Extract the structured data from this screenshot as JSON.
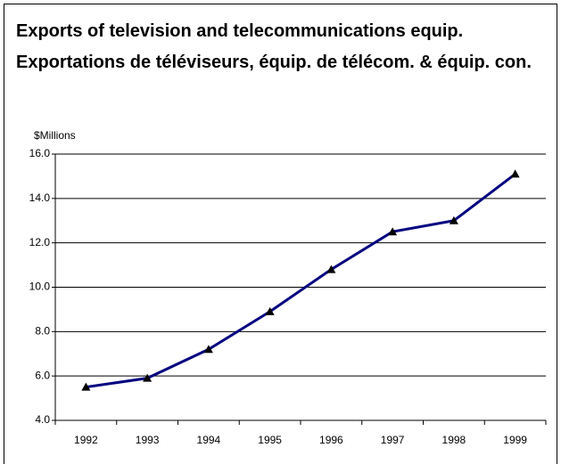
{
  "chart_data": {
    "type": "line",
    "title": "Exports of television and telecommunications equip.",
    "subtitle": "Exportations de téléviseurs, équip. de télécom. & équip. con.",
    "y_label": "$Millions",
    "categories": [
      "1992",
      "1993",
      "1994",
      "1995",
      "1996",
      "1997",
      "1998",
      "1999"
    ],
    "series": [
      {
        "name": "Exports",
        "color": "#000080",
        "values": [
          5.5,
          5.9,
          7.2,
          8.9,
          10.8,
          12.5,
          13.0,
          15.1
        ]
      }
    ],
    "ylim": [
      4,
      16
    ],
    "yticks": [
      {
        "value": 4,
        "label": "4.0"
      },
      {
        "value": 6,
        "label": "6.0"
      },
      {
        "value": 8,
        "label": "8.0"
      },
      {
        "value": 10,
        "label": "10.0"
      },
      {
        "value": 12,
        "label": "12.0"
      },
      {
        "value": 14,
        "label": "14.0"
      },
      {
        "value": 16,
        "label": "16.0"
      }
    ],
    "grid": true
  }
}
